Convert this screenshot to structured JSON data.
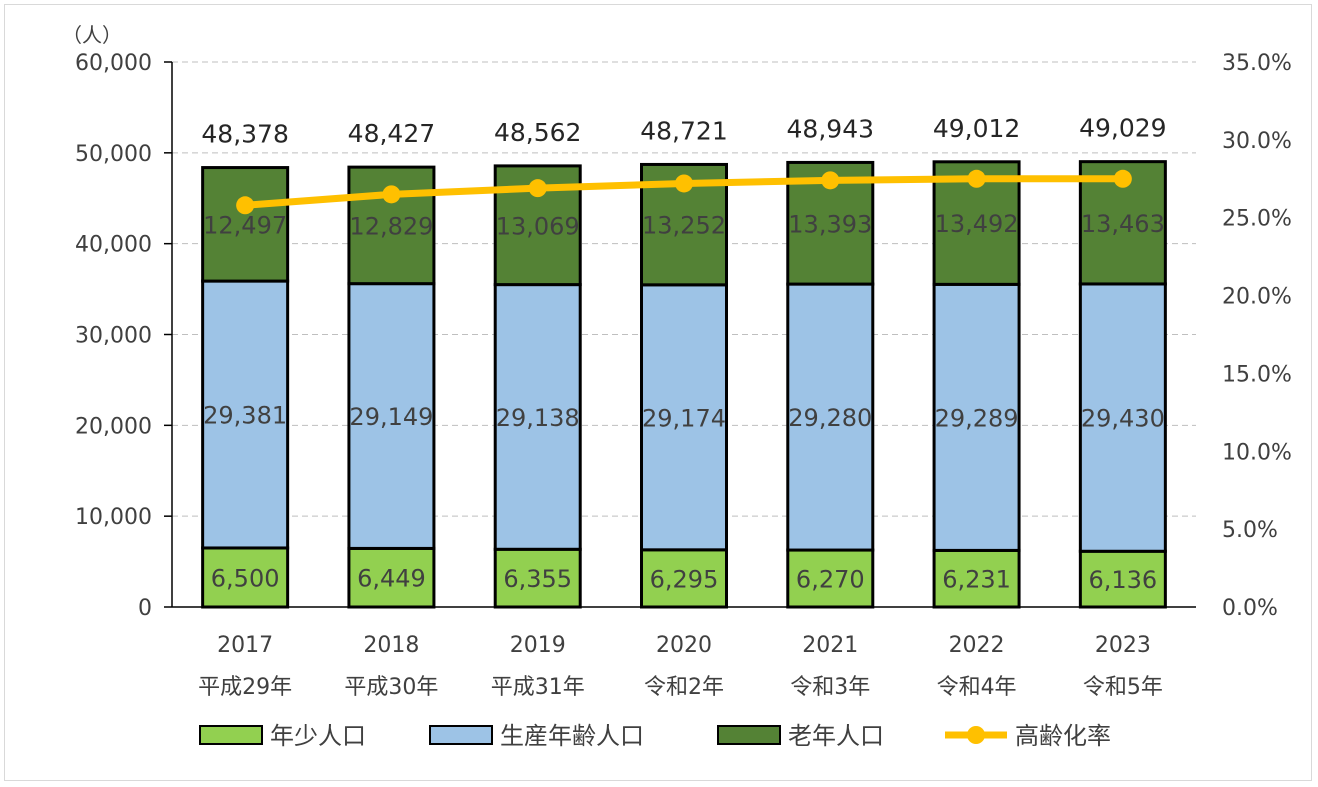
{
  "chart_data": {
    "type": "bar",
    "stacked": true,
    "title": "",
    "y_unit_label": "（人）",
    "categories": [
      "2017",
      "2018",
      "2019",
      "2020",
      "2021",
      "2022",
      "2023"
    ],
    "category_sublabels": [
      "平成29年",
      "平成30年",
      "平成31年",
      "令和2年",
      "令和3年",
      "令和4年",
      "令和5年"
    ],
    "ylim": [
      0,
      60000
    ],
    "yticks": [
      "0",
      "10,000",
      "20,000",
      "30,000",
      "40,000",
      "50,000",
      "60,000"
    ],
    "y2lim": [
      0,
      35
    ],
    "y2ticks": [
      "0.0%",
      "5.0%",
      "10.0%",
      "15.0%",
      "20.0%",
      "25.0%",
      "30.0%",
      "35.0%"
    ],
    "grid": "horizontal dashed",
    "legend_position": "bottom",
    "series": [
      {
        "name": "年少人口",
        "type": "bar",
        "color": "#92D050",
        "values": [
          6500,
          6449,
          6355,
          6295,
          6270,
          6231,
          6136
        ],
        "labels": [
          "6,500",
          "6,449",
          "6,355",
          "6,295",
          "6,270",
          "6,231",
          "6,136"
        ]
      },
      {
        "name": "生産年齢人口",
        "type": "bar",
        "color": "#9DC3E6",
        "values": [
          29381,
          29149,
          29138,
          29174,
          29280,
          29289,
          29430
        ],
        "labels": [
          "29,381",
          "29,149",
          "29,138",
          "29,174",
          "29,280",
          "29,289",
          "29,430"
        ]
      },
      {
        "name": "老年人口",
        "type": "bar",
        "color": "#548235",
        "values": [
          12497,
          12829,
          13069,
          13252,
          13393,
          13492,
          13463
        ],
        "labels": [
          "12,497",
          "12,829",
          "13,069",
          "13,252",
          "13,393",
          "13,492",
          "13,463"
        ]
      },
      {
        "name": "高齢化率",
        "type": "line",
        "axis": "right",
        "color": "#FFC000",
        "values": [
          25.8,
          26.5,
          26.9,
          27.2,
          27.4,
          27.5,
          27.5
        ]
      }
    ],
    "totals": [
      "48,378",
      "48,427",
      "48,562",
      "48,721",
      "48,943",
      "49,012",
      "49,029"
    ]
  }
}
